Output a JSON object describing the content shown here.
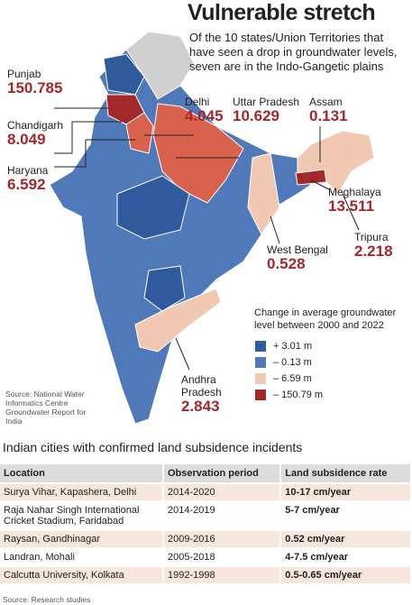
{
  "header": {
    "title": "Vulnerable stretch",
    "subtitle": "Of the 10 states/Union Territories that have seen a drop in groundwater levels, seven are in the Indo-Gangetic plains"
  },
  "map": {
    "labels": [
      {
        "name": "Punjab",
        "value": "150.785"
      },
      {
        "name": "Chandigarh",
        "value": "8.049"
      },
      {
        "name": "Haryana",
        "value": "6.592"
      },
      {
        "name": "Delhi",
        "value": "4.045"
      },
      {
        "name": "Uttar Pradesh",
        "value": "10.629"
      },
      {
        "name": "Assam",
        "value": "0.131"
      },
      {
        "name": "Meghalaya",
        "value": "13.511"
      },
      {
        "name": "Tripura",
        "value": "2.218"
      },
      {
        "name": "West Bengal",
        "value": "0.528"
      },
      {
        "name": "Andhra Pradesh",
        "value": "2.843"
      }
    ],
    "legend": {
      "title": "Change in average groundwater level between 2000 and 2022",
      "items": [
        {
          "label": "+ 3.01 m",
          "color": "#2f5a9e"
        },
        {
          "label": "– 0.13 m",
          "color": "#4f79b8"
        },
        {
          "label": "– 6.59 m",
          "color": "#f1c9b3"
        },
        {
          "label": "– 150.79 m",
          "color": "#a3282b"
        }
      ]
    },
    "source": "Source: National Water Informatics Centre Groundwater Report for India"
  },
  "table": {
    "title": "Indian cities with confirmed land subsidence incidents",
    "headers": [
      "Location",
      "Observation period",
      "Land subsidence rate"
    ],
    "rows": [
      [
        "Surya Vihar, Kapashera, Delhi",
        "2014-2020",
        "10-17 cm/year"
      ],
      [
        "Raja Nahar Singh International Cricket Stadium, Faridabad",
        "2014-2019",
        "5-7 cm/year"
      ],
      [
        "Raysan, Gandhinagar",
        "2009-2016",
        "0.52 cm/year"
      ],
      [
        "Landran, Mohali",
        "2005-2018",
        "4-7.5 cm/year"
      ],
      [
        "Calcutta University, Kolkata",
        "1992-1998",
        "0.5-0.65 cm/year"
      ]
    ],
    "source": "Source: Research studies"
  }
}
